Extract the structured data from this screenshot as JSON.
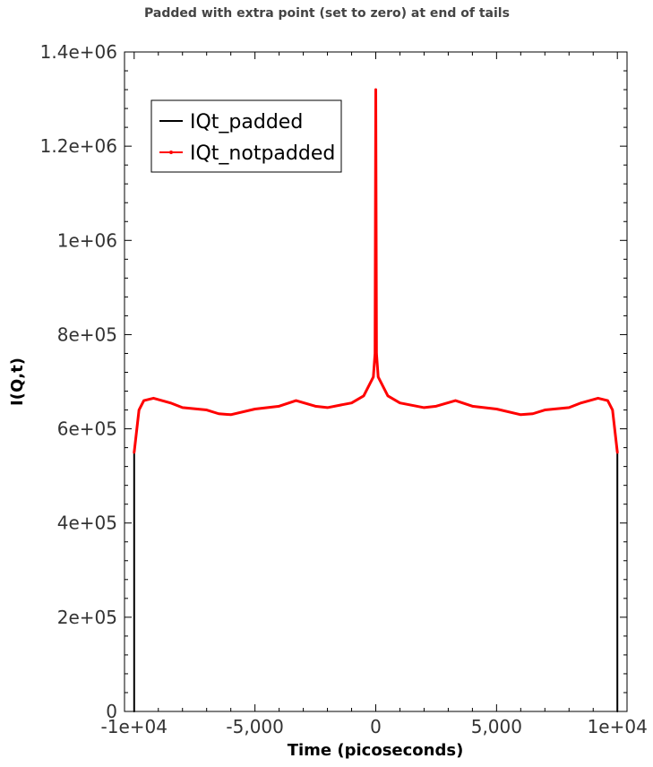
{
  "chart_data": {
    "type": "line",
    "title": "Padded with extra point (set to zero) at end of tails",
    "xlabel": "Time (picoseconds)",
    "ylabel": "I(Q,t)",
    "xlim": [
      -10400,
      10400
    ],
    "ylim": [
      0,
      1400000
    ],
    "x_ticks": [
      -10000,
      -5000,
      0,
      5000,
      10000
    ],
    "x_tick_labels": [
      "-1e+04",
      "-5,000",
      "0",
      "5,000",
      "1e+04"
    ],
    "y_ticks": [
      0,
      200000,
      400000,
      600000,
      800000,
      1000000,
      1200000,
      1400000
    ],
    "y_tick_labels": [
      "0",
      "2e+05",
      "4e+05",
      "6e+05",
      "8e+05",
      "1e+06",
      "1.2e+06",
      "1.4e+06"
    ],
    "legend_position": "top-left",
    "grid": false,
    "series": [
      {
        "name": "IQt_padded",
        "color": "#000000",
        "x": [
          -10000,
          -10000,
          -9800,
          -9600,
          -9200,
          -8500,
          -8000,
          -7000,
          -6500,
          -6000,
          -5000,
          -4000,
          -3300,
          -2500,
          -2000,
          -1000,
          -500,
          -100,
          -30,
          0,
          30,
          100,
          500,
          1000,
          2000,
          2500,
          3300,
          4000,
          5000,
          6000,
          6500,
          7000,
          8000,
          8500,
          9200,
          9600,
          9800,
          10000,
          10000
        ],
        "y": [
          0,
          550000,
          640000,
          660000,
          665000,
          655000,
          645000,
          640000,
          632000,
          630000,
          642000,
          648000,
          660000,
          648000,
          645000,
          655000,
          670000,
          710000,
          760000,
          1320000,
          760000,
          710000,
          670000,
          655000,
          645000,
          648000,
          660000,
          648000,
          642000,
          630000,
          632000,
          640000,
          645000,
          655000,
          665000,
          660000,
          640000,
          550000,
          0
        ]
      },
      {
        "name": "IQt_notpadded",
        "color": "#ff0000",
        "x": [
          -10000,
          -9800,
          -9600,
          -9200,
          -8500,
          -8000,
          -7000,
          -6500,
          -6000,
          -5000,
          -4000,
          -3300,
          -2500,
          -2000,
          -1000,
          -500,
          -100,
          -30,
          0,
          30,
          100,
          500,
          1000,
          2000,
          2500,
          3300,
          4000,
          5000,
          6000,
          6500,
          7000,
          8000,
          8500,
          9200,
          9600,
          9800,
          10000
        ],
        "y": [
          550000,
          640000,
          660000,
          665000,
          655000,
          645000,
          640000,
          632000,
          630000,
          642000,
          648000,
          660000,
          648000,
          645000,
          655000,
          670000,
          710000,
          760000,
          1320000,
          760000,
          710000,
          670000,
          655000,
          645000,
          648000,
          660000,
          648000,
          642000,
          630000,
          632000,
          640000,
          645000,
          655000,
          665000,
          660000,
          640000,
          550000
        ]
      }
    ]
  }
}
